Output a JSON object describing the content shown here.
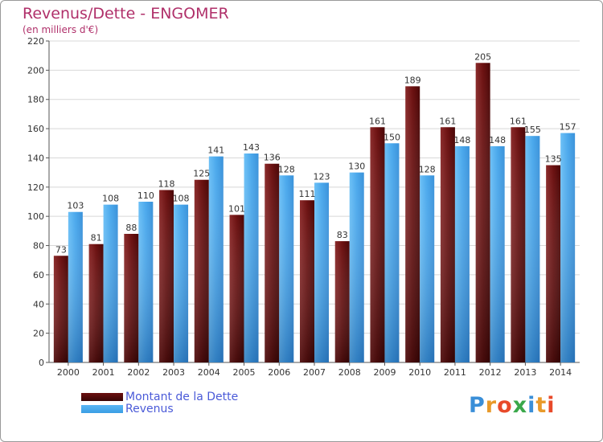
{
  "header": {
    "title": "Revenus/Dette - ENGOMER",
    "subtitle": "(en milliers d'€)"
  },
  "legend": {
    "items": [
      {
        "label": "Montant de la Dette",
        "color": "#6b1010"
      },
      {
        "label": "Revenus",
        "color": "#3a9ee4"
      }
    ]
  },
  "logo": {
    "text": "Proxiti",
    "colors": [
      "#3a8fd8",
      "#e89a2a",
      "#e84a2a",
      "#3aa84a",
      "#3a8fd8",
      "#e89a2a",
      "#e84a2a"
    ]
  },
  "chart_data": {
    "type": "bar",
    "title": "Revenus/Dette - ENGOMER",
    "ylabel": "",
    "xlabel": "",
    "ylim": [
      0,
      220
    ],
    "yticks": [
      0,
      20,
      40,
      60,
      80,
      100,
      120,
      140,
      160,
      180,
      200,
      220
    ],
    "grid": true,
    "categories": [
      "2000",
      "2001",
      "2002",
      "2003",
      "2004",
      "2005",
      "2006",
      "2007",
      "2008",
      "2009",
      "2010",
      "2011",
      "2012",
      "2013",
      "2014"
    ],
    "series": [
      {
        "name": "Montant de la Dette",
        "color": "#6b1010",
        "values": [
          73,
          81,
          88,
          118,
          125,
          101,
          136,
          111,
          83,
          161,
          189,
          161,
          205,
          161,
          135
        ]
      },
      {
        "name": "Revenus",
        "color": "#3a9ee4",
        "values": [
          103,
          108,
          110,
          108,
          141,
          143,
          128,
          123,
          130,
          150,
          128,
          148,
          148,
          155,
          157
        ]
      }
    ]
  }
}
